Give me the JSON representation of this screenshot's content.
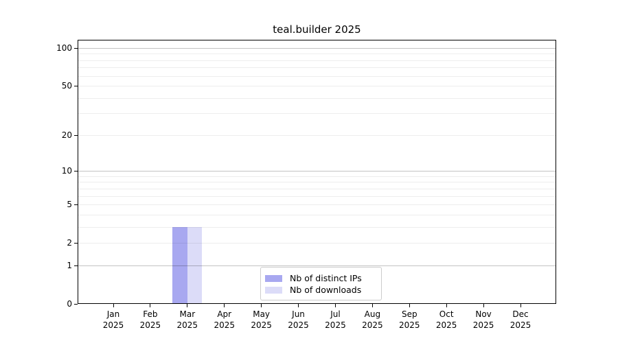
{
  "chart_data": {
    "type": "bar",
    "title": "teal.builder 2025",
    "months": [
      "Jan",
      "Feb",
      "Mar",
      "Apr",
      "May",
      "Jun",
      "Jul",
      "Aug",
      "Sep",
      "Oct",
      "Nov",
      "Dec"
    ],
    "year_label": "2025",
    "series": [
      {
        "name": "Nb of distinct IPs",
        "color": "#a8a8f0",
        "values": [
          0,
          0,
          3,
          0,
          0,
          0,
          0,
          0,
          0,
          0,
          0,
          0
        ]
      },
      {
        "name": "Nb of downloads",
        "color": "#dcdcf8",
        "values": [
          0,
          0,
          3,
          0,
          0,
          0,
          0,
          0,
          0,
          0,
          0,
          0
        ]
      }
    ],
    "y_axis": {
      "tick_labels": [
        0,
        1,
        2,
        5,
        10,
        20,
        50,
        100
      ],
      "minor_ticks": [
        3,
        4,
        6,
        7,
        8,
        9,
        30,
        40,
        60,
        70,
        80,
        90
      ],
      "major_grid_values": [
        1,
        10,
        100
      ],
      "scale": "log10(1+x)",
      "range": [
        0,
        116
      ]
    },
    "xlabel": "",
    "ylabel": "",
    "grid": "horizontal",
    "legend_position": "bottom-center"
  },
  "colors": {
    "background": "#ffffff",
    "axis": "#000000",
    "grid_minor": "rgba(0,0,0,0.07)",
    "grid_major": "rgba(0,0,0,0.24)",
    "legend_border": "#cccccc",
    "bar_distinct_ips": "#a8a8f0",
    "bar_downloads": "#dcdcf8"
  }
}
